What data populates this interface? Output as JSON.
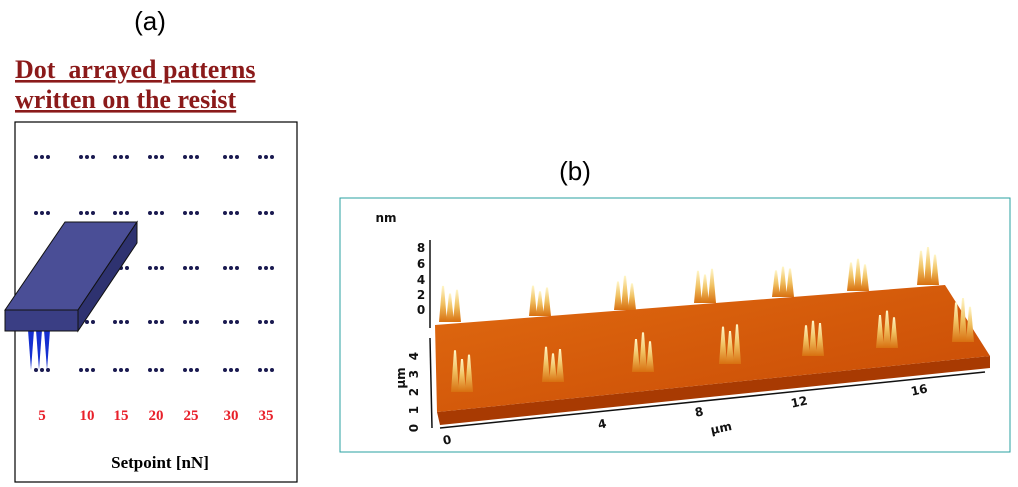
{
  "panel_a": {
    "label": "(a)",
    "title_lines": [
      "Dot  arrayed patterns",
      "written on the resist"
    ],
    "setpoints": [
      "5",
      "10",
      "15",
      "20",
      "25",
      "30",
      "35"
    ],
    "x_label": "Setpoint [nN]"
  },
  "panel_b": {
    "label": "(b)",
    "z_unit": "nm",
    "z_ticks": [
      "8",
      "6",
      "4",
      "2",
      "0"
    ],
    "y_unit": "µm",
    "y_ticks": [
      "0",
      "1",
      "2",
      "3",
      "4"
    ],
    "x_ticks": [
      "0",
      "4",
      "8",
      "12",
      "16"
    ],
    "x_unit": "µm"
  }
}
